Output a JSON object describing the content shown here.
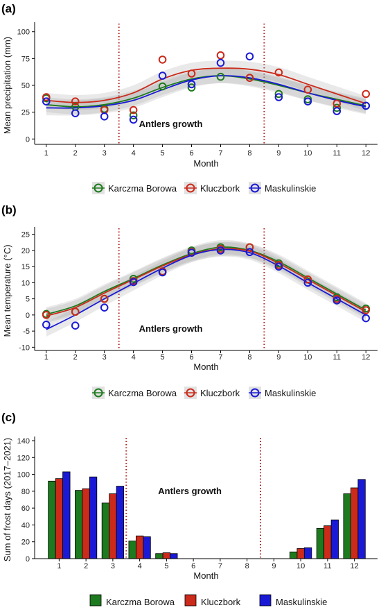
{
  "colors": {
    "Karczma Borowa": "#1e7a1e",
    "Kluczbork": "#cc2a1a",
    "Maskulinskie": "#1a1ad6"
  },
  "chart_data": [
    {
      "panel": "(a)",
      "type": "scatter",
      "xlabel": "Month",
      "ylabel": "Mean precipitation (mm)",
      "annotation": "Antlers growth",
      "x_ticks": [
        1,
        2,
        3,
        4,
        5,
        6,
        7,
        8,
        9,
        10,
        11,
        12
      ],
      "y_ticks": [
        0,
        25,
        50,
        75,
        100
      ],
      "xlim": [
        0.6,
        12.4
      ],
      "ylim": [
        -5,
        105
      ],
      "vlines": [
        3.5,
        8.5
      ],
      "legend_position": "bottom",
      "series": [
        {
          "name": "Karczma Borowa",
          "x": [
            1,
            2,
            3,
            4,
            5,
            6,
            7,
            8,
            9,
            10,
            11,
            12
          ],
          "y": [
            38,
            30,
            28,
            22,
            49,
            48,
            58,
            57,
            42,
            37,
            29,
            31
          ]
        },
        {
          "name": "Kluczbork",
          "x": [
            1,
            2,
            3,
            4,
            5,
            6,
            7,
            8,
            9,
            10,
            11,
            12
          ],
          "y": [
            39,
            35,
            27,
            27,
            74,
            61,
            78,
            57,
            62,
            46,
            33,
            42
          ]
        },
        {
          "name": "Maskulinskie",
          "x": [
            1,
            2,
            3,
            4,
            5,
            6,
            7,
            8,
            9,
            10,
            11,
            12
          ],
          "y": [
            35,
            24,
            21,
            18,
            59,
            51,
            71,
            77,
            39,
            35,
            26,
            31
          ]
        }
      ],
      "smooth": [
        {
          "name": "Karczma Borowa",
          "y": [
            32,
            30,
            32,
            38,
            48,
            56,
            59,
            56,
            50,
            43,
            37,
            31
          ]
        },
        {
          "name": "Kluczbork",
          "y": [
            36,
            34,
            36,
            43,
            56,
            64,
            66,
            65,
            60,
            51,
            42,
            33
          ]
        },
        {
          "name": "Maskulinskie",
          "y": [
            29,
            29,
            31,
            36,
            46,
            55,
            59,
            57,
            51,
            43,
            36,
            30
          ]
        }
      ]
    },
    {
      "panel": "(b)",
      "type": "scatter",
      "xlabel": "Month",
      "ylabel": "Mean temperature (°C)",
      "annotation": "Antlers growth",
      "x_ticks": [
        1,
        2,
        3,
        4,
        5,
        6,
        7,
        8,
        9,
        10,
        11,
        12
      ],
      "y_ticks": [
        -10,
        -5,
        0,
        5,
        10,
        15,
        20,
        25
      ],
      "xlim": [
        0.6,
        12.4
      ],
      "ylim": [
        -11,
        26
      ],
      "vlines": [
        3.5,
        8.5
      ],
      "legend_position": "bottom",
      "series": [
        {
          "name": "Karczma Borowa",
          "x": [
            1,
            2,
            3,
            4,
            5,
            6,
            7,
            8,
            9,
            10,
            11,
            12
          ],
          "y": [
            0.3,
            1,
            5,
            11.2,
            13.5,
            20,
            21,
            21,
            16,
            11,
            5.5,
            2
          ]
        },
        {
          "name": "Kluczbork",
          "x": [
            1,
            2,
            3,
            4,
            5,
            6,
            7,
            8,
            9,
            10,
            11,
            12
          ],
          "y": [
            0,
            1,
            5,
            10.5,
            13.5,
            19.5,
            20.5,
            21,
            15.5,
            11,
            5,
            1.5
          ]
        },
        {
          "name": "Maskulinskie",
          "x": [
            1,
            2,
            3,
            4,
            5,
            6,
            7,
            8,
            9,
            10,
            11,
            12
          ],
          "y": [
            -3,
            -3.3,
            2.3,
            10.2,
            13.2,
            19.3,
            20,
            19.5,
            15,
            10,
            4.5,
            -1
          ]
        }
      ],
      "smooth": [
        {
          "name": "Karczma Borowa",
          "y": [
            0.2,
            2.8,
            7.3,
            11.3,
            15.5,
            19,
            21,
            20,
            16.5,
            11.5,
            6.5,
            1.5
          ]
        },
        {
          "name": "Kluczbork",
          "y": [
            -0.3,
            2.3,
            6.8,
            11,
            15.2,
            18.7,
            20.5,
            19.8,
            16,
            11,
            6,
            1
          ]
        },
        {
          "name": "Maskulinskie",
          "y": [
            -4.5,
            0,
            5,
            9.8,
            14.5,
            18.5,
            20.3,
            19.3,
            15.2,
            10,
            5,
            0
          ]
        }
      ]
    },
    {
      "panel": "(c)",
      "type": "bar",
      "xlabel": "Month",
      "ylabel": "Sum of frost days (2017–2021)",
      "annotation": "Antlers growth",
      "categories": [
        "1",
        "2",
        "3",
        "4",
        "5",
        "6",
        "7",
        "8",
        "9",
        "10",
        "11",
        "12"
      ],
      "y_ticks": [
        0,
        20,
        40,
        60,
        80,
        100,
        120,
        140
      ],
      "ylim": [
        0,
        140
      ],
      "vlines": [
        3.5,
        8.5
      ],
      "legend_position": "bottom",
      "series": [
        {
          "name": "Karczma Borowa",
          "values": [
            92,
            81,
            66,
            21,
            6,
            0,
            0,
            0,
            0,
            8,
            36,
            77
          ]
        },
        {
          "name": "Kluczbork",
          "values": [
            95,
            83,
            77,
            27,
            7,
            0,
            0,
            0,
            0,
            12,
            39,
            84
          ]
        },
        {
          "name": "Maskulinskie",
          "values": [
            103,
            97,
            86,
            26,
            6,
            0,
            0,
            0,
            0,
            13,
            46,
            94
          ]
        }
      ]
    }
  ]
}
